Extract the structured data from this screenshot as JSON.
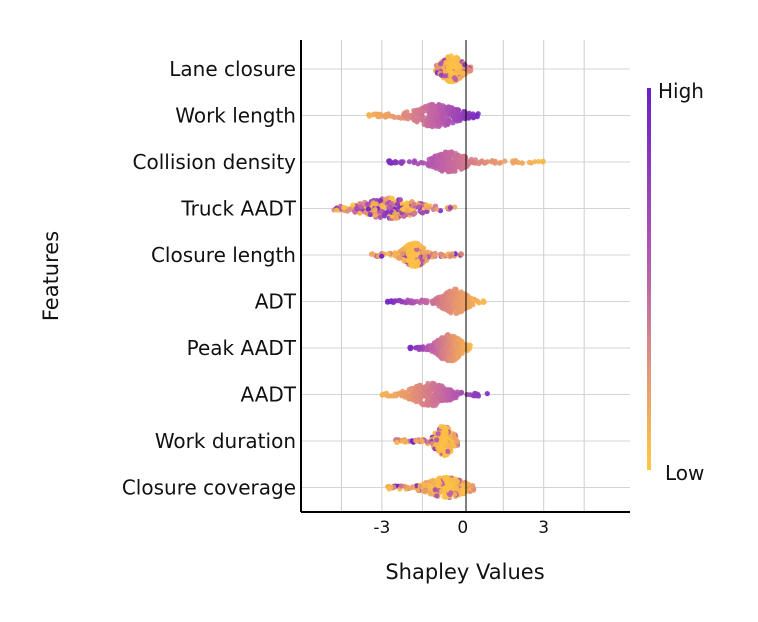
{
  "chart_data": {
    "type": "scatter",
    "subtype": "shap-beeswarm",
    "title": "",
    "xlabel": "Shapley Values",
    "ylabel": "Features",
    "xlim": [
      -6,
      6.2
    ],
    "xticks": [
      -3,
      0,
      3
    ],
    "grid": true,
    "colorbar": {
      "high_label": "High",
      "low_label": "Low",
      "high_color": "#6a1fc9",
      "low_color": "#ffc83d"
    },
    "features": [
      {
        "name": "Lane closure",
        "min": -1.0,
        "max": 0.3,
        "center": -0.4,
        "spread": 0.35,
        "max_width": 12,
        "low_side": "center"
      },
      {
        "name": "Work length",
        "min": -3.5,
        "max": 0.6,
        "center": -1.0,
        "spread": 0.7,
        "max_width": 10,
        "low_side": "left"
      },
      {
        "name": "Collision density",
        "min": -3.0,
        "max": 3.0,
        "center": -0.5,
        "spread": 0.5,
        "max_width": 9,
        "low_side": "right"
      },
      {
        "name": "Truck AADT",
        "min": -4.8,
        "max": -0.3,
        "center": -2.7,
        "spread": 0.9,
        "max_width": 9,
        "low_side": "mixed"
      },
      {
        "name": "Closure length",
        "min": -3.4,
        "max": 0.0,
        "center": -1.8,
        "spread": 0.35,
        "max_width": 11,
        "low_side": "center"
      },
      {
        "name": "ADT",
        "min": -2.8,
        "max": 0.8,
        "center": -0.3,
        "spread": 0.4,
        "max_width": 11,
        "low_side": "right"
      },
      {
        "name": "Peak AADT",
        "min": -2.0,
        "max": 0.3,
        "center": -0.5,
        "spread": 0.4,
        "max_width": 12,
        "low_side": "right"
      },
      {
        "name": "AADT",
        "min": -3.0,
        "max": 1.0,
        "center": -1.2,
        "spread": 0.6,
        "max_width": 10,
        "low_side": "left"
      },
      {
        "name": "Work duration",
        "min": -2.5,
        "max": -0.2,
        "center": -0.7,
        "spread": 0.3,
        "max_width": 14,
        "low_side": "center"
      },
      {
        "name": "Closure coverage",
        "min": -2.8,
        "max": 0.4,
        "center": -0.6,
        "spread": 0.6,
        "max_width": 9,
        "low_side": "center"
      }
    ]
  }
}
